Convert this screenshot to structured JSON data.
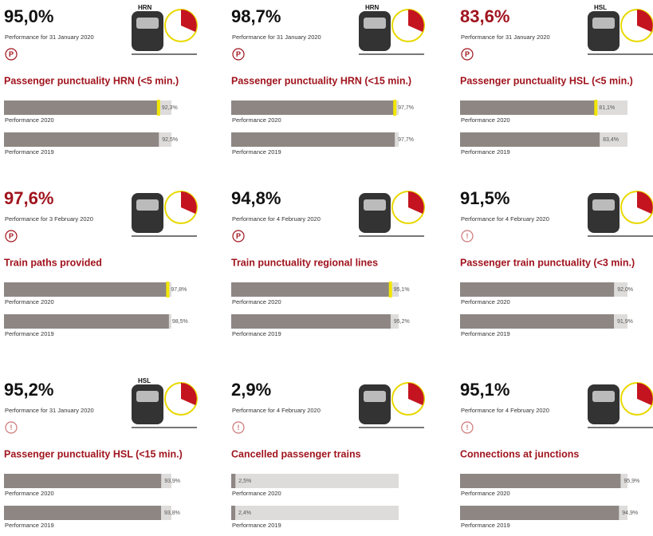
{
  "cards": [
    {
      "value": "95,0%",
      "color": "#111111",
      "subtitle": "Performance for 31 January 2020",
      "icon": "P",
      "icon_labels": [
        "HRN",
        "5"
      ],
      "title": "Passenger punctuality HRN (<5 min.)",
      "bars": [
        {
          "value": 92.3,
          "label": "92,3%",
          "name": "Performance 2020"
        },
        {
          "value": 92.5,
          "label": "92,5%",
          "name": "Performance 2019"
        }
      ]
    },
    {
      "value": "98,7%",
      "color": "#111111",
      "subtitle": "Performance for 31 January 2020",
      "icon": "P",
      "icon_labels": [
        "HRN",
        "15"
      ],
      "title": "Passenger punctuality HRN (<15 min.)",
      "bars": [
        {
          "value": 97.7,
          "label": "97,7%",
          "name": "Performance 2020"
        },
        {
          "value": 97.7,
          "label": "97,7%",
          "name": "Performance 2019"
        }
      ]
    },
    {
      "value": "83,6%",
      "color": "#a0141e",
      "subtitle": "Performance for 31 January 2020",
      "icon": "P",
      "icon_labels": [
        "HSL",
        "5"
      ],
      "title": "Passenger punctuality HSL (<5 min.)",
      "bars": [
        {
          "value": 81.1,
          "label": "81,1%",
          "name": "Performance 2020"
        },
        {
          "value": 83.4,
          "label": "83,4%",
          "name": "Performance 2019"
        }
      ]
    },
    {
      "value": "97,6%",
      "color": "#a0141e",
      "subtitle": "Performance for 3 February 2020",
      "icon": "P",
      "icon_labels": [],
      "title": "Train paths provided",
      "bars": [
        {
          "value": 97.8,
          "label": "97,8%",
          "name": "Performance 2020"
        },
        {
          "value": 98.5,
          "label": "98,5%",
          "name": "Performance 2019"
        }
      ]
    },
    {
      "value": "94,8%",
      "color": "#111111",
      "subtitle": "Performance for 4 February 2020",
      "icon": "P",
      "icon_labels": [],
      "title": "Train punctuality regional lines",
      "bars": [
        {
          "value": 95.1,
          "label": "95,1%",
          "name": "Performance 2020"
        },
        {
          "value": 95.2,
          "label": "95,2%",
          "name": "Performance 2019"
        }
      ]
    },
    {
      "value": "91,5%",
      "color": "#111111",
      "subtitle": "Performance for 4 February 2020",
      "icon": "!",
      "icon_labels": [
        "5"
      ],
      "title": "Passenger train punctuality (<3 min.)",
      "bars": [
        {
          "value": 92.0,
          "label": "92,0%",
          "name": "Performance 2020"
        },
        {
          "value": 91.9,
          "label": "91,9%",
          "name": "Performance 2019"
        }
      ]
    },
    {
      "value": "95,2%",
      "color": "#111111",
      "subtitle": "Performance for 31 January 2020",
      "icon": "!",
      "icon_labels": [
        "HSL",
        "15"
      ],
      "title": "Passenger punctuality HSL (<15 min.)",
      "bars": [
        {
          "value": 93.9,
          "label": "93,9%",
          "name": "Performance 2020"
        },
        {
          "value": 93.8,
          "label": "93,8%",
          "name": "Performance 2019"
        }
      ]
    },
    {
      "value": "2,9%",
      "color": "#111111",
      "subtitle": "Performance for 4 February 2020",
      "icon": "!",
      "icon_labels": [],
      "title": "Cancelled passenger trains",
      "bars": [
        {
          "value": 2.5,
          "label": "2,5%",
          "name": "Performance 2020"
        },
        {
          "value": 2.4,
          "label": "2,4%",
          "name": "Performance 2019"
        }
      ]
    },
    {
      "value": "95,1%",
      "color": "#111111",
      "subtitle": "Performance for 4 February 2020",
      "icon": "!",
      "icon_labels": [],
      "title": "Connections at junctions",
      "bars": [
        {
          "value": 95.9,
          "label": "95,9%",
          "name": "Performance 2020"
        },
        {
          "value": 94.9,
          "label": "94,9%",
          "name": "Performance 2019"
        }
      ]
    }
  ]
}
